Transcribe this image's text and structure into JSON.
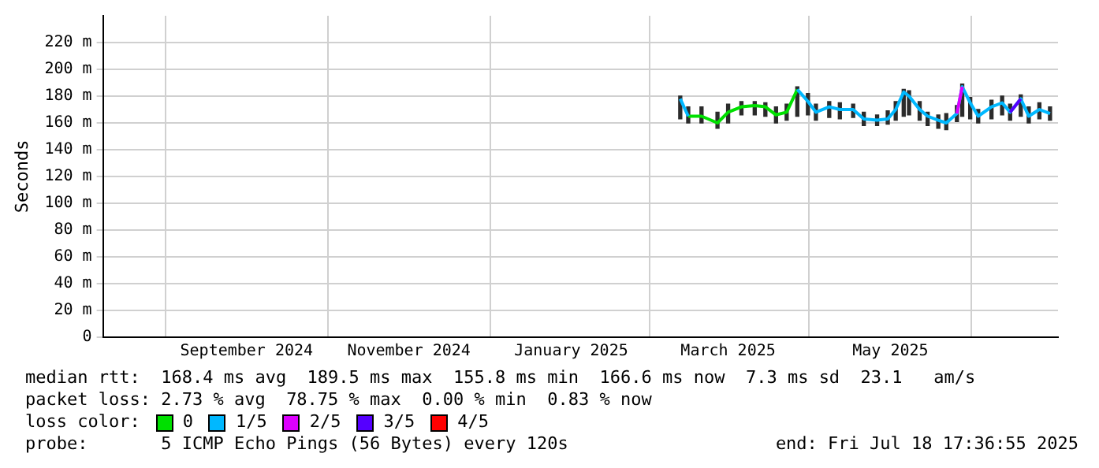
{
  "chart_data": {
    "type": "line",
    "ylabel": "Seconds",
    "x": [
      "2025-02-26",
      "2025-03-01",
      "2025-03-06",
      "2025-03-12",
      "2025-03-16",
      "2025-03-21",
      "2025-03-26",
      "2025-03-30",
      "2025-04-03",
      "2025-04-07",
      "2025-04-11",
      "2025-04-15",
      "2025-04-18",
      "2025-04-23",
      "2025-04-27",
      "2025-05-02",
      "2025-05-06",
      "2025-05-11",
      "2025-05-15",
      "2025-05-18",
      "2025-05-21",
      "2025-05-23",
      "2025-05-27",
      "2025-05-30",
      "2025-06-03",
      "2025-06-06",
      "2025-06-10",
      "2025-06-12",
      "2025-06-15",
      "2025-06-18",
      "2025-06-23",
      "2025-06-27",
      "2025-06-30",
      "2025-07-04",
      "2025-07-07",
      "2025-07-11",
      "2025-07-15"
    ],
    "xlim": [
      "2024-07-24",
      "2025-07-18"
    ],
    "xticks": [
      {
        "value": "2024-09-16",
        "label": "September 2024"
      },
      {
        "value": "2024-11-16",
        "label": "November 2024"
      },
      {
        "value": "2025-01-16",
        "label": "January 2025"
      },
      {
        "value": "2025-03-16",
        "label": "March 2025"
      },
      {
        "value": "2025-05-16",
        "label": "May 2025"
      }
    ],
    "ylim": [
      0,
      240
    ],
    "yticks": [
      0,
      {
        "value": 20,
        "label": "20 m"
      },
      {
        "value": 40,
        "label": "40 m"
      },
      {
        "value": 60,
        "label": "60 m"
      },
      {
        "value": 80,
        "label": "80 m"
      },
      {
        "value": 100,
        "label": "100 m"
      },
      {
        "value": 120,
        "label": "120 m"
      },
      {
        "value": 140,
        "label": "140 m"
      },
      {
        "value": 160,
        "label": "160 m"
      },
      {
        "value": 180,
        "label": "180 m"
      },
      {
        "value": 200,
        "label": "200 m"
      },
      {
        "value": 220,
        "label": "220 m"
      }
    ],
    "series": [
      {
        "type": "bar",
        "color": "#2b2b2b",
        "base": [
          163,
          160,
          160,
          156,
          160,
          166,
          166,
          165,
          160,
          162,
          165,
          166,
          162,
          164,
          163,
          164,
          158,
          158,
          159,
          162,
          165,
          166,
          162,
          158,
          156,
          155,
          161,
          165,
          163,
          160,
          163,
          166,
          162,
          165,
          160,
          163,
          162
        ],
        "values": [
          17,
          12,
          12,
          12,
          14,
          10,
          10,
          10,
          12,
          12,
          22,
          16,
          12,
          12,
          12,
          10,
          10,
          8,
          10,
          14,
          20,
          18,
          14,
          10,
          10,
          12,
          12,
          24,
          16,
          10,
          14,
          14,
          12,
          16,
          12,
          12,
          10
        ]
      },
      {
        "name": "0",
        "color": "#00e000",
        "values": [
          null,
          165,
          165,
          160,
          168,
          172,
          173,
          172,
          166,
          168,
          185,
          null,
          null,
          null,
          null,
          null,
          null,
          null,
          null,
          null,
          null,
          null,
          null,
          null,
          null,
          null,
          null,
          null,
          null,
          null,
          null,
          null,
          null,
          null,
          null,
          null,
          null
        ]
      },
      {
        "name": "1/5",
        "color": "#00b8ff",
        "values": [
          178,
          165,
          null,
          null,
          null,
          null,
          null,
          null,
          null,
          null,
          185,
          176,
          168,
          172,
          170,
          170,
          163,
          162,
          163,
          170,
          183,
          180,
          170,
          165,
          162,
          160,
          167,
          187,
          175,
          165,
          172,
          175,
          168,
          178,
          165,
          170,
          167
        ]
      },
      {
        "name": "2/5",
        "color": "#dd00ff",
        "values": [
          null,
          null,
          null,
          null,
          null,
          null,
          null,
          null,
          null,
          null,
          null,
          null,
          null,
          null,
          null,
          null,
          null,
          null,
          null,
          null,
          null,
          null,
          null,
          null,
          null,
          null,
          167,
          187,
          null,
          null,
          null,
          null,
          null,
          null,
          null,
          null,
          null
        ]
      },
      {
        "name": "3/5",
        "color": "#5500ff",
        "values": [
          null,
          null,
          null,
          null,
          null,
          null,
          null,
          null,
          null,
          null,
          null,
          null,
          null,
          null,
          null,
          null,
          null,
          null,
          null,
          null,
          null,
          null,
          null,
          null,
          null,
          null,
          null,
          null,
          null,
          null,
          null,
          null,
          168,
          178,
          null,
          null,
          null
        ]
      },
      {
        "name": "4/5",
        "color": "#ff0000",
        "values": [
          null,
          null,
          null,
          null,
          null,
          null,
          null,
          null,
          null,
          null,
          null,
          null,
          null,
          null,
          null,
          null,
          null,
          null,
          null,
          null,
          null,
          null,
          null,
          null,
          null,
          null,
          null,
          null,
          null,
          null,
          null,
          null,
          null,
          null,
          null,
          null,
          null
        ]
      }
    ],
    "legend": "bottom",
    "legend_title": "loss color:",
    "grid": true,
    "marker": "none",
    "line_style": "solid",
    "annotations": [
      "median rtt:  168.4 ms avg  189.5 ms max  155.8 ms min  166.6 ms now  7.3 ms sd  23.1   am/s",
      "packet loss: 2.73 % avg  78.75 % max  0.00 % min  0.83 % now",
      "probe:       5 ICMP Echo Pings (56 Bytes) every 120s",
      "end: Fri Jul 18 17:36:55 2025"
    ]
  }
}
